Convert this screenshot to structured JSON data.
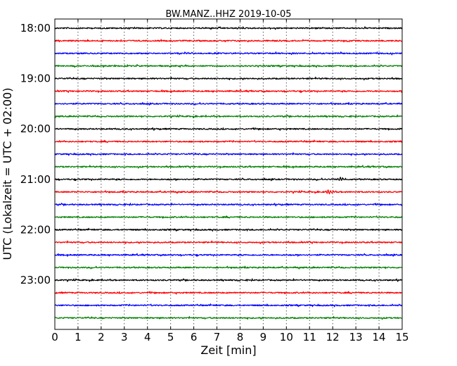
{
  "chart_data": {
    "type": "line",
    "title": "BW.MANZ..HHZ 2019-10-05",
    "xlabel": "Zeit  [min]",
    "ylabel": "UTC (Lokalzeit = UTC + 02:00)",
    "xlim": [
      0,
      15
    ],
    "x_ticks": [
      0,
      1,
      2,
      3,
      4,
      5,
      6,
      7,
      8,
      9,
      10,
      11,
      12,
      13,
      14,
      15
    ],
    "x_tick_labels": [
      "0",
      "1",
      "2",
      "3",
      "4",
      "5",
      "6",
      "7",
      "8",
      "9",
      "10",
      "11",
      "12",
      "13",
      "14",
      "15"
    ],
    "y_tick_labels": [
      "18:00",
      "19:00",
      "20:00",
      "21:00",
      "22:00",
      "23:00"
    ],
    "grid": true,
    "colors": [
      "#000000",
      "#ff0000",
      "#0000ff",
      "#008000"
    ],
    "series": [
      {
        "start": "18:00",
        "color": "#000000"
      },
      {
        "start": "18:15",
        "color": "#ff0000"
      },
      {
        "start": "18:30",
        "color": "#0000ff"
      },
      {
        "start": "18:45",
        "color": "#008000"
      },
      {
        "start": "19:00",
        "color": "#000000"
      },
      {
        "start": "19:15",
        "color": "#ff0000"
      },
      {
        "start": "19:30",
        "color": "#0000ff"
      },
      {
        "start": "19:45",
        "color": "#008000"
      },
      {
        "start": "20:00",
        "color": "#000000"
      },
      {
        "start": "20:15",
        "color": "#ff0000"
      },
      {
        "start": "20:30",
        "color": "#0000ff"
      },
      {
        "start": "20:45",
        "color": "#008000"
      },
      {
        "start": "21:00",
        "color": "#000000",
        "event_minutes": [
          12.1,
          12.6
        ]
      },
      {
        "start": "21:15",
        "color": "#ff0000",
        "event_minutes": [
          11.6,
          12.1
        ]
      },
      {
        "start": "21:30",
        "color": "#0000ff"
      },
      {
        "start": "21:45",
        "color": "#008000"
      },
      {
        "start": "22:00",
        "color": "#000000"
      },
      {
        "start": "22:15",
        "color": "#ff0000"
      },
      {
        "start": "22:30",
        "color": "#0000ff"
      },
      {
        "start": "22:45",
        "color": "#008000"
      },
      {
        "start": "23:00",
        "color": "#000000"
      },
      {
        "start": "23:15",
        "color": "#ff0000"
      },
      {
        "start": "23:30",
        "color": "#0000ff"
      },
      {
        "start": "23:45",
        "color": "#008000"
      }
    ]
  }
}
